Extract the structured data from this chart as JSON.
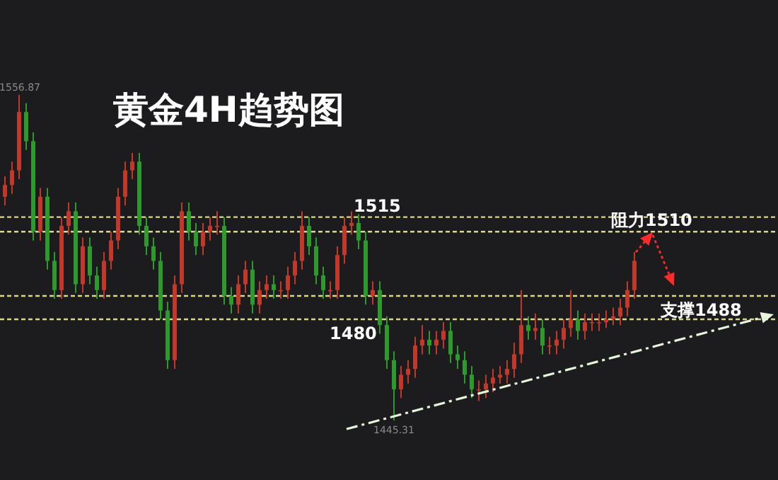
{
  "chart_data": {
    "type": "candlestick",
    "title": "黄金4H趋势图",
    "categories": [
      null,
      null,
      null,
      null,
      null,
      null,
      null,
      null,
      null,
      null,
      null,
      null,
      null,
      null,
      null,
      null,
      null,
      null,
      null,
      null,
      null,
      null,
      null,
      null,
      null,
      null,
      null,
      null,
      null,
      null,
      null,
      null,
      null,
      null,
      null,
      null,
      null,
      null,
      null,
      null,
      null,
      null,
      null,
      null,
      null,
      null,
      null,
      null,
      null,
      null,
      null,
      null,
      null,
      null,
      null,
      null,
      null,
      null,
      null,
      null,
      null,
      null,
      null,
      null,
      null,
      null,
      null,
      null,
      null,
      null,
      null,
      null,
      null,
      null,
      null,
      null,
      null,
      null,
      null,
      null,
      null,
      null,
      null,
      null,
      null,
      null,
      null,
      null,
      null,
      null
    ],
    "ohlc": [
      [
        1522,
        1529,
        1519,
        1526
      ],
      [
        1526,
        1534,
        1523,
        1531
      ],
      [
        1531,
        1556.87,
        1528,
        1551
      ],
      [
        1551,
        1554,
        1538,
        1541
      ],
      [
        1541,
        1544,
        1507,
        1510
      ],
      [
        1510,
        1525,
        1507,
        1522
      ],
      [
        1522,
        1525,
        1497,
        1500
      ],
      [
        1500,
        1503,
        1487,
        1490
      ],
      [
        1490,
        1515,
        1487,
        1512
      ],
      [
        1512,
        1520,
        1509,
        1517
      ],
      [
        1517,
        1520,
        1489,
        1492
      ],
      [
        1492,
        1508,
        1489,
        1505
      ],
      [
        1505,
        1508,
        1492,
        1495
      ],
      [
        1495,
        1498,
        1487,
        1490
      ],
      [
        1490,
        1503,
        1487,
        1500
      ],
      [
        1500,
        1510,
        1497,
        1507
      ],
      [
        1507,
        1525,
        1504,
        1522
      ],
      [
        1522,
        1534,
        1519,
        1531
      ],
      [
        1531,
        1537,
        1528,
        1534
      ],
      [
        1534,
        1537,
        1509,
        1512
      ],
      [
        1512,
        1515,
        1502,
        1505
      ],
      [
        1505,
        1508,
        1497,
        1500
      ],
      [
        1500,
        1503,
        1480,
        1483
      ],
      [
        1483,
        1486,
        1463,
        1466
      ],
      [
        1466,
        1495,
        1463,
        1492
      ],
      [
        1492,
        1520,
        1489,
        1517
      ],
      [
        1517,
        1520,
        1507,
        1510
      ],
      [
        1510,
        1513,
        1502,
        1505
      ],
      [
        1505,
        1513,
        1502,
        1510
      ],
      [
        1510,
        1515,
        1507,
        1512
      ],
      [
        1512,
        1517,
        1509,
        1512
      ],
      [
        1512,
        1515,
        1485,
        1488
      ],
      [
        1488,
        1491,
        1482,
        1485
      ],
      [
        1485,
        1495,
        1482,
        1492
      ],
      [
        1492,
        1500,
        1489,
        1497
      ],
      [
        1497,
        1500,
        1482,
        1485
      ],
      [
        1485,
        1493,
        1482,
        1490
      ],
      [
        1490,
        1495,
        1487,
        1492
      ],
      [
        1492,
        1495,
        1487,
        1490
      ],
      [
        1490,
        1493,
        1487,
        1490
      ],
      [
        1490,
        1498,
        1487,
        1495
      ],
      [
        1495,
        1503,
        1492,
        1500
      ],
      [
        1500,
        1517,
        1497,
        1512
      ],
      [
        1512,
        1515,
        1502,
        1505
      ],
      [
        1505,
        1508,
        1492,
        1495
      ],
      [
        1495,
        1498,
        1487,
        1490
      ],
      [
        1490,
        1493,
        1487,
        1490
      ],
      [
        1490,
        1505,
        1487,
        1502
      ],
      [
        1502,
        1515,
        1499,
        1512
      ],
      [
        1512,
        1517,
        1509,
        1513
      ],
      [
        1513,
        1516,
        1504,
        1507
      ],
      [
        1507,
        1510,
        1485,
        1488
      ],
      [
        1488,
        1493,
        1485,
        1490
      ],
      [
        1490,
        1493,
        1475,
        1478
      ],
      [
        1478,
        1481,
        1463,
        1466
      ],
      [
        1466,
        1469,
        1445.31,
        1456
      ],
      [
        1456,
        1464,
        1453,
        1461
      ],
      [
        1461,
        1466,
        1458,
        1463
      ],
      [
        1463,
        1474,
        1460,
        1471
      ],
      [
        1471,
        1478,
        1468,
        1473
      ],
      [
        1473,
        1476,
        1468,
        1471
      ],
      [
        1471,
        1476,
        1468,
        1473
      ],
      [
        1473,
        1479,
        1470,
        1476
      ],
      [
        1476,
        1479,
        1465,
        1468
      ],
      [
        1468,
        1471,
        1463,
        1466
      ],
      [
        1466,
        1469,
        1458,
        1461
      ],
      [
        1461,
        1464,
        1453,
        1456
      ],
      [
        1456,
        1459,
        1452,
        1456
      ],
      [
        1456,
        1461,
        1453,
        1458
      ],
      [
        1458,
        1463,
        1455,
        1460
      ],
      [
        1460,
        1464,
        1458,
        1461
      ],
      [
        1461,
        1466,
        1458,
        1463
      ],
      [
        1463,
        1472,
        1460,
        1468
      ],
      [
        1468,
        1490,
        1465,
        1478
      ],
      [
        1478,
        1481,
        1473,
        1476
      ],
      [
        1476,
        1482,
        1473,
        1477
      ],
      [
        1477,
        1480,
        1468,
        1471
      ],
      [
        1471,
        1474,
        1468,
        1471
      ],
      [
        1471,
        1476,
        1468,
        1473
      ],
      [
        1473,
        1480,
        1470,
        1477
      ],
      [
        1477,
        1490,
        1474,
        1480
      ],
      [
        1480,
        1483,
        1473,
        1476
      ],
      [
        1476,
        1482,
        1473,
        1479
      ],
      [
        1479,
        1482,
        1476,
        1479
      ],
      [
        1479,
        1482,
        1476,
        1479
      ],
      [
        1479,
        1483,
        1477,
        1480
      ],
      [
        1480,
        1484,
        1478,
        1481
      ],
      [
        1481,
        1487,
        1478,
        1484
      ],
      [
        1484,
        1493,
        1481,
        1490
      ],
      [
        1490,
        1503,
        1487,
        1500
      ]
    ],
    "ref_lines": [
      {
        "axis": "y",
        "value": 1515,
        "label": "1515",
        "color": "#d9d68a",
        "line_style": "dashed"
      },
      {
        "axis": "y",
        "value": 1510,
        "label": "阻力1510",
        "color": "#d9d68a",
        "line_style": "dashed"
      },
      {
        "axis": "y",
        "value": 1488,
        "label": "支撑1488",
        "color": "#d9d68a",
        "line_style": "dashed"
      },
      {
        "axis": "y",
        "value": 1480,
        "label": "1480",
        "color": "#d9d68a",
        "line_style": "dashed"
      }
    ],
    "annotations": [
      {
        "text": "1556.87",
        "y": 1556.87
      },
      {
        "text": "1445.31",
        "y": 1445.31
      }
    ]
  }
}
